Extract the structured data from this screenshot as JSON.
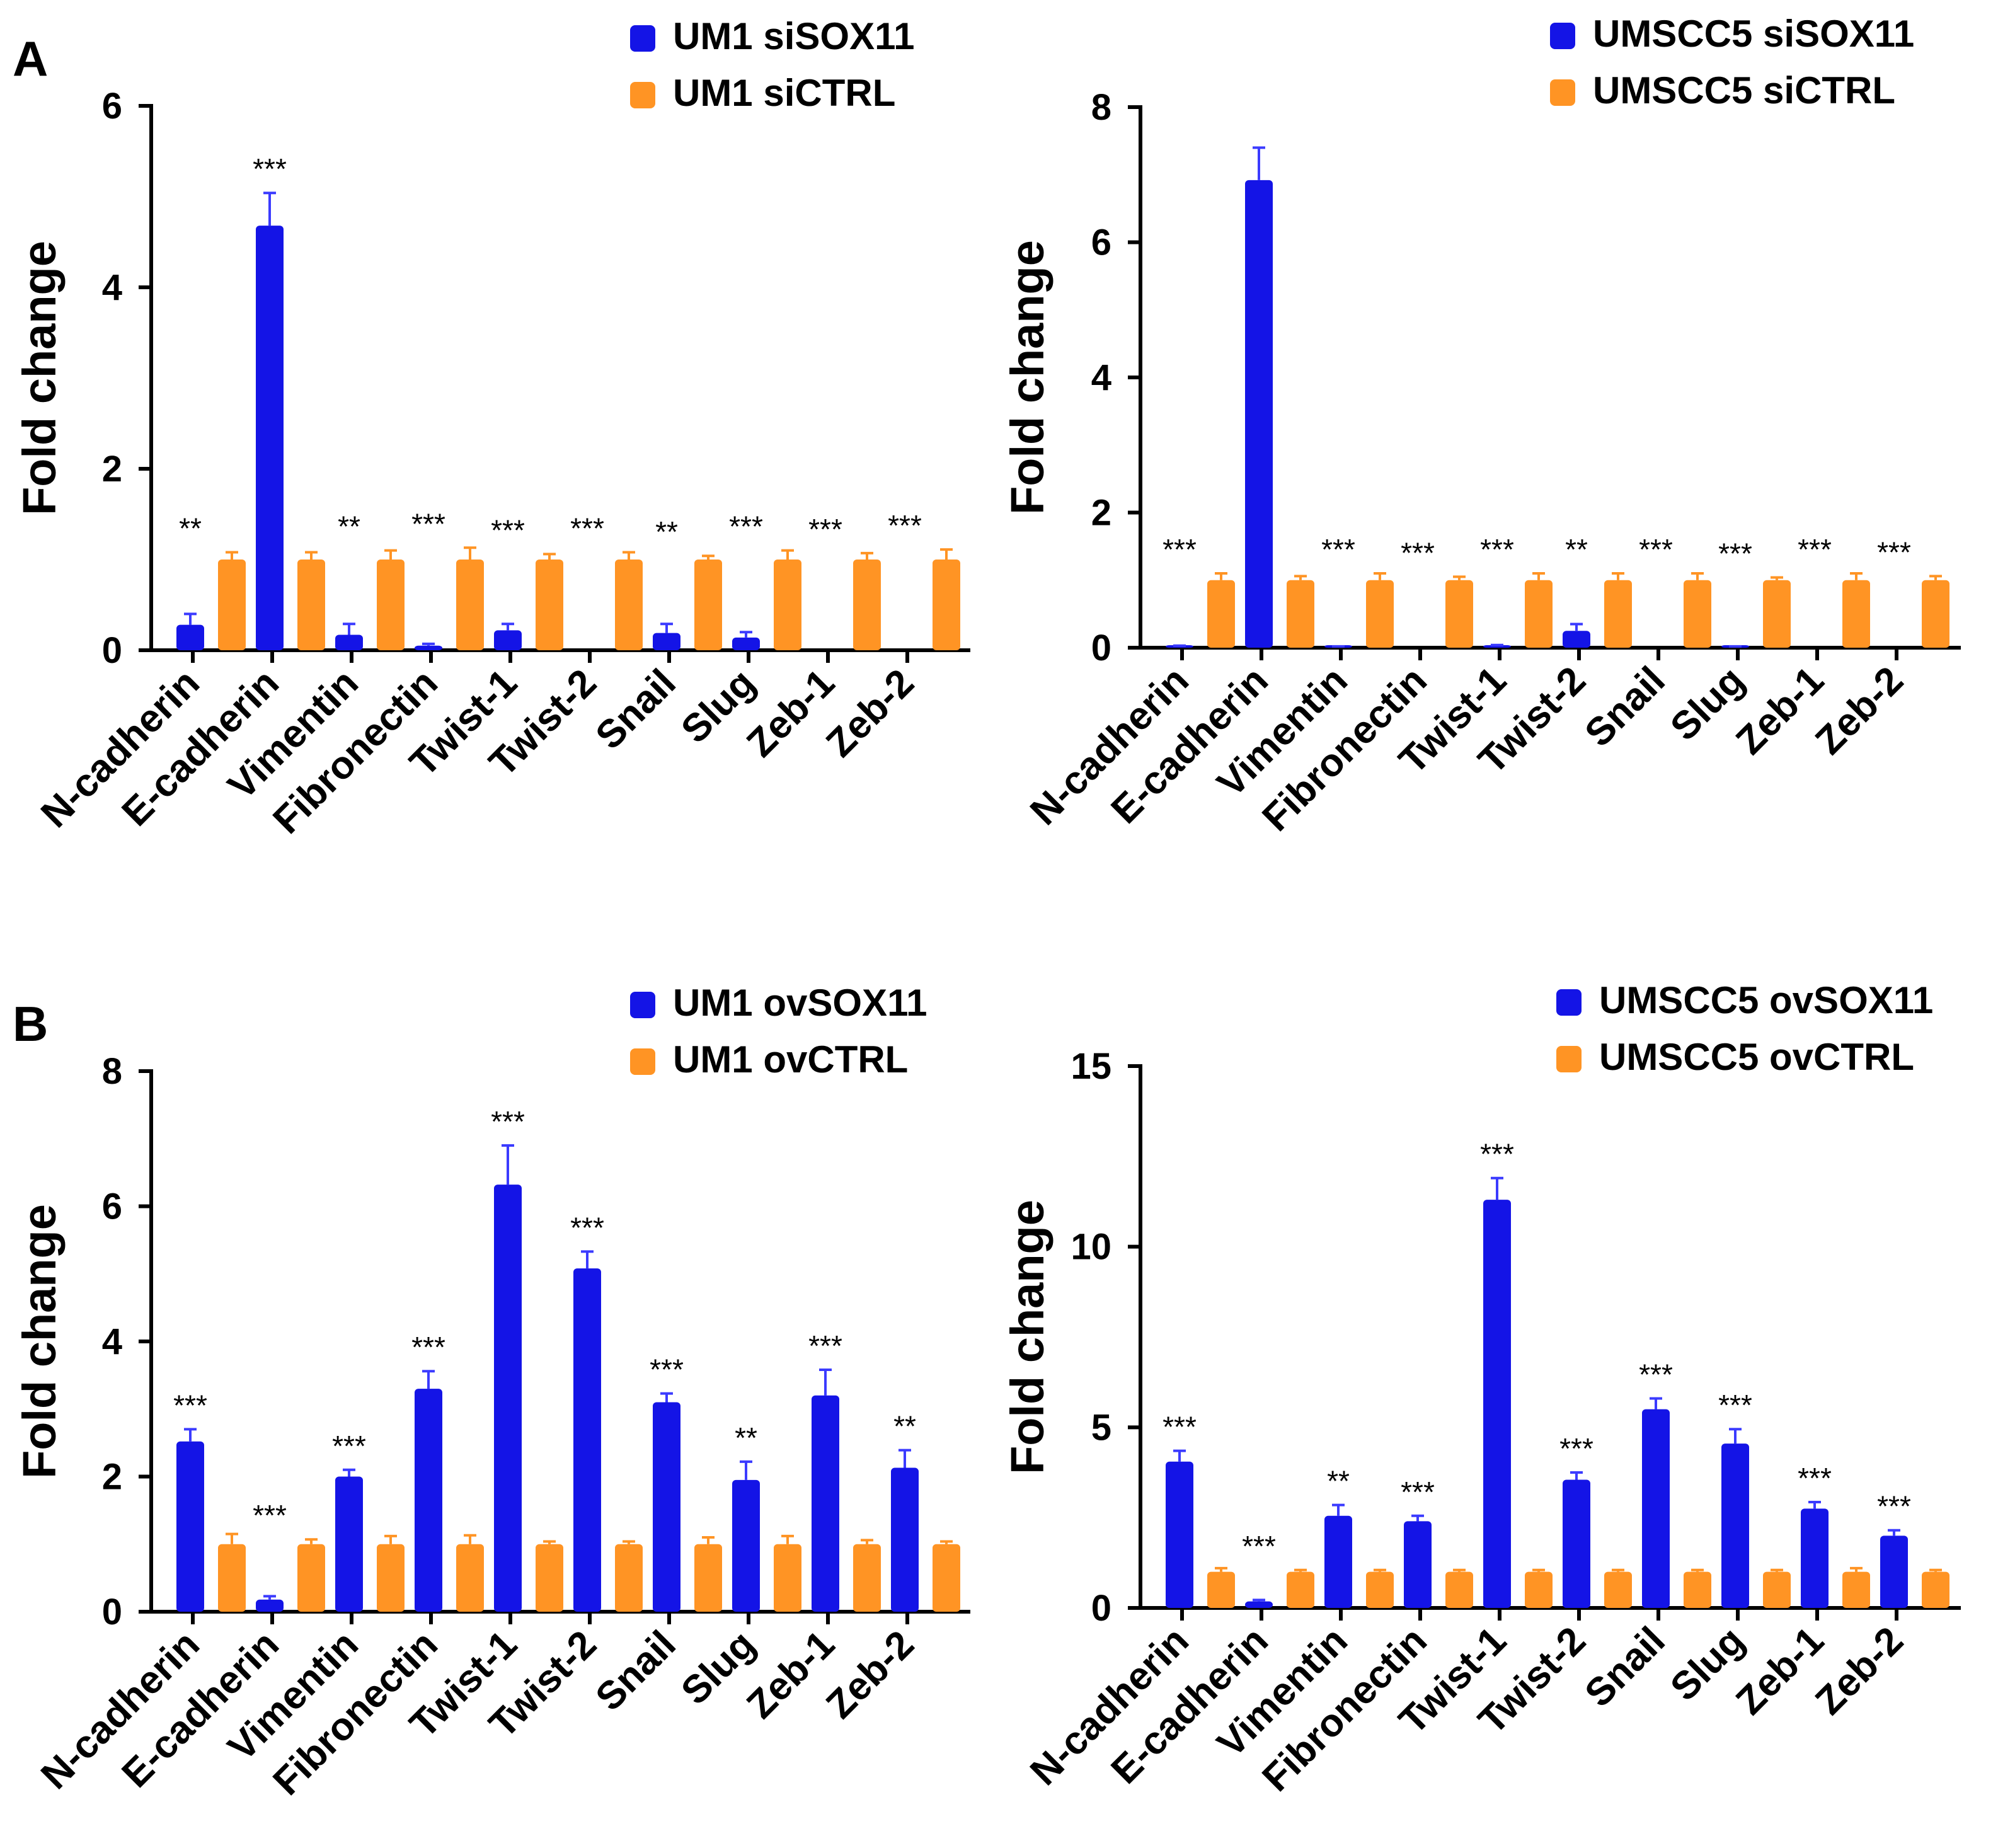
{
  "figure": {
    "panel_letters": [
      "A",
      "B"
    ]
  },
  "colors": {
    "series_blue": "#1414e6",
    "series_orange": "#ff9424",
    "blue_err": "#3b3bff",
    "orange_err": "#ff9424"
  },
  "chart_data": [
    {
      "id": "A-left",
      "panel_letter": "A",
      "type": "bar",
      "ylabel": "Fold change",
      "ylim": [
        0,
        6
      ],
      "yticks": [
        0,
        2,
        4,
        6
      ],
      "categories": [
        "N-cadherin",
        "E-cadherin",
        "Vimentin",
        "Fibronectin",
        "Twist-1",
        "Twist-2",
        "Snail",
        "Slug",
        "Zeb-1",
        "Zeb-2"
      ],
      "series": [
        {
          "name": "UM1 siSOX11",
          "color": "#1414e6",
          "values": [
            0.28,
            4.68,
            0.17,
            0.05,
            0.22,
            0.0,
            0.19,
            0.14,
            0.0,
            0.0
          ],
          "errors": [
            0.12,
            0.36,
            0.12,
            0.02,
            0.07,
            0.0,
            0.1,
            0.06,
            0.0,
            0.0
          ]
        },
        {
          "name": "UM1 siCTRL",
          "color": "#ff9424",
          "values": [
            1.0,
            1.0,
            1.0,
            1.0,
            1.0,
            1.0,
            1.0,
            1.0,
            1.0,
            1.0
          ],
          "errors": [
            0.08,
            0.08,
            0.1,
            0.13,
            0.06,
            0.08,
            0.04,
            0.1,
            0.07,
            0.11
          ]
        }
      ],
      "significance": [
        "**",
        "***",
        "**",
        "***",
        "***",
        "***",
        "**",
        "***",
        "***",
        "***"
      ]
    },
    {
      "id": "A-right",
      "type": "bar",
      "ylabel": "Fold change",
      "ylim": [
        0,
        8
      ],
      "yticks": [
        0,
        2,
        4,
        6,
        8
      ],
      "categories": [
        "N-cadherin",
        "E-cadherin",
        "Vimentin",
        "Fibronectin",
        "Twist-1",
        "Twist-2",
        "Snail",
        "Slug",
        "Zeb-1",
        "Zeb-2"
      ],
      "series": [
        {
          "name": "UMSCC5 siSOX11",
          "color": "#1414e6",
          "values": [
            0.02,
            6.92,
            0.01,
            0.0,
            0.03,
            0.25,
            0.0,
            0.01,
            0.0,
            0.0
          ],
          "errors": [
            0.01,
            0.48,
            0.01,
            0.0,
            0.01,
            0.1,
            0.0,
            0.01,
            0.0,
            0.0
          ]
        },
        {
          "name": "UMSCC5 siCTRL",
          "color": "#ff9424",
          "values": [
            1.0,
            1.0,
            1.0,
            1.0,
            1.0,
            1.0,
            1.0,
            1.0,
            1.0,
            1.0
          ],
          "errors": [
            0.1,
            0.06,
            0.1,
            0.05,
            0.1,
            0.1,
            0.1,
            0.04,
            0.1,
            0.06
          ]
        }
      ],
      "significance": [
        "***",
        "",
        "***",
        "***",
        "***",
        "**",
        "***",
        "***",
        "***",
        "***"
      ]
    },
    {
      "id": "B-left",
      "panel_letter": "B",
      "type": "bar",
      "ylabel": "Fold change",
      "ylim": [
        0,
        8
      ],
      "yticks": [
        0,
        2,
        4,
        6,
        8
      ],
      "categories": [
        "N-cadherin",
        "E-cadherin",
        "Vimentin",
        "Fibronectin",
        "Twist-1",
        "Twist-2",
        "Snail",
        "Slug",
        "Zeb-1",
        "Zeb-2"
      ],
      "series": [
        {
          "name": "UM1 ovSOX11",
          "color": "#1414e6",
          "values": [
            2.52,
            0.18,
            2.0,
            3.3,
            6.32,
            5.08,
            3.1,
            1.95,
            3.2,
            2.13
          ],
          "errors": [
            0.18,
            0.05,
            0.1,
            0.26,
            0.58,
            0.25,
            0.13,
            0.27,
            0.38,
            0.26
          ]
        },
        {
          "name": "UM1 ovCTRL",
          "color": "#ff9424",
          "values": [
            1.0,
            1.0,
            1.0,
            1.0,
            1.0,
            1.0,
            1.0,
            1.0,
            1.0,
            1.0
          ],
          "errors": [
            0.15,
            0.07,
            0.12,
            0.13,
            0.04,
            0.04,
            0.1,
            0.12,
            0.06,
            0.04
          ]
        }
      ],
      "significance": [
        "***",
        "***",
        "***",
        "***",
        "***",
        "***",
        "***",
        "**",
        "***",
        "**"
      ]
    },
    {
      "id": "B-right",
      "type": "bar",
      "ylabel": "Fold change",
      "ylim": [
        0,
        15
      ],
      "yticks": [
        0,
        5,
        10,
        15
      ],
      "categories": [
        "N-cadherin",
        "E-cadherin",
        "Vimentin",
        "Fibronectin",
        "Twist-1",
        "Twist-2",
        "Snail",
        "Slug",
        "Zeb-1",
        "Zeb-2"
      ],
      "series": [
        {
          "name": "UMSCC5 ovSOX11",
          "color": "#1414e6",
          "values": [
            4.05,
            0.18,
            2.55,
            2.4,
            11.3,
            3.55,
            5.5,
            4.55,
            2.75,
            2.0
          ],
          "errors": [
            0.3,
            0.04,
            0.3,
            0.15,
            0.6,
            0.2,
            0.3,
            0.4,
            0.18,
            0.15
          ]
        },
        {
          "name": "UMSCC5 ovCTRL",
          "color": "#ff9424",
          "values": [
            1.0,
            1.0,
            1.0,
            1.0,
            1.0,
            1.0,
            1.0,
            1.0,
            1.0,
            1.0
          ],
          "errors": [
            0.1,
            0.05,
            0.05,
            0.05,
            0.05,
            0.05,
            0.05,
            0.05,
            0.1,
            0.05
          ]
        }
      ],
      "significance": [
        "***",
        "***",
        "**",
        "***",
        "***",
        "***",
        "***",
        "***",
        "***",
        "***"
      ]
    }
  ]
}
